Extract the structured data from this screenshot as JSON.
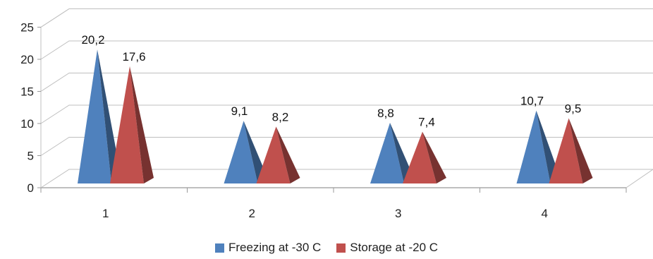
{
  "chart_data": {
    "type": "bar",
    "style": "3d-pyramid",
    "categories": [
      "1",
      "2",
      "3",
      "4"
    ],
    "series": [
      {
        "name": "Freezing at -30 C",
        "values": [
          20.2,
          9.1,
          8.8,
          10.7
        ],
        "labels": [
          "20,2",
          "9,1",
          "8,8",
          "10,7"
        ],
        "color": "#4f81bd"
      },
      {
        "name": "Storage at -20 C",
        "values": [
          17.6,
          8.2,
          7.4,
          9.5
        ],
        "labels": [
          "17,6",
          "8,2",
          "7,4",
          "9,5"
        ],
        "color": "#c0504d"
      }
    ],
    "y_ticks": [
      "0",
      "5",
      "10",
      "15",
      "20",
      "25"
    ],
    "ylim": [
      0,
      25
    ],
    "grid": true,
    "legend_position": "bottom"
  }
}
